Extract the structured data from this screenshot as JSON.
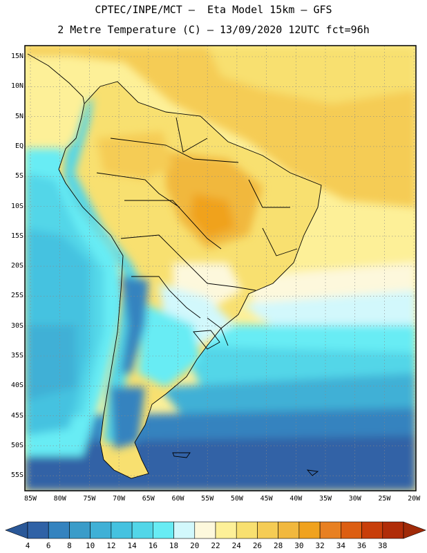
{
  "header": {
    "title_line1": "CPTEC/INPE/MCT –  Eta Model 15km – GFS",
    "title_line2": "2 Metre Temperature (C) – 13/09/2020 12UTC fct=96h"
  },
  "map": {
    "lat_ticks": [
      "15N",
      "10N",
      "5N",
      "EQ",
      "5S",
      "10S",
      "15S",
      "20S",
      "25S",
      "30S",
      "35S",
      "40S",
      "45S",
      "50S",
      "55S"
    ],
    "lon_ticks": [
      "85W",
      "80W",
      "75W",
      "70W",
      "65W",
      "60W",
      "55W",
      "50W",
      "45W",
      "40W",
      "35W",
      "30W",
      "25W",
      "20W"
    ],
    "grid": "dotted",
    "extent": {
      "lon": [
        -85,
        -20
      ],
      "lat": [
        -58,
        16
      ]
    }
  },
  "colorbar": {
    "labels": [
      "4",
      "6",
      "8",
      "10",
      "12",
      "14",
      "16",
      "18",
      "20",
      "22",
      "24",
      "26",
      "28",
      "30",
      "32",
      "34",
      "36",
      "38"
    ],
    "colors": [
      "#3062a6",
      "#3483bf",
      "#3a9cc9",
      "#3fb0d6",
      "#45c2e0",
      "#52d6e8",
      "#68ecf4",
      "#d2f8fc",
      "#fdf8dc",
      "#fdf098",
      "#f8e070",
      "#f5cc55",
      "#f1b83e",
      "#f0a21e",
      "#e88022",
      "#dc5e12",
      "#c83e0a",
      "#b02c08"
    ],
    "under_color": "#2a5898",
    "over_color": "#a02a08"
  }
}
